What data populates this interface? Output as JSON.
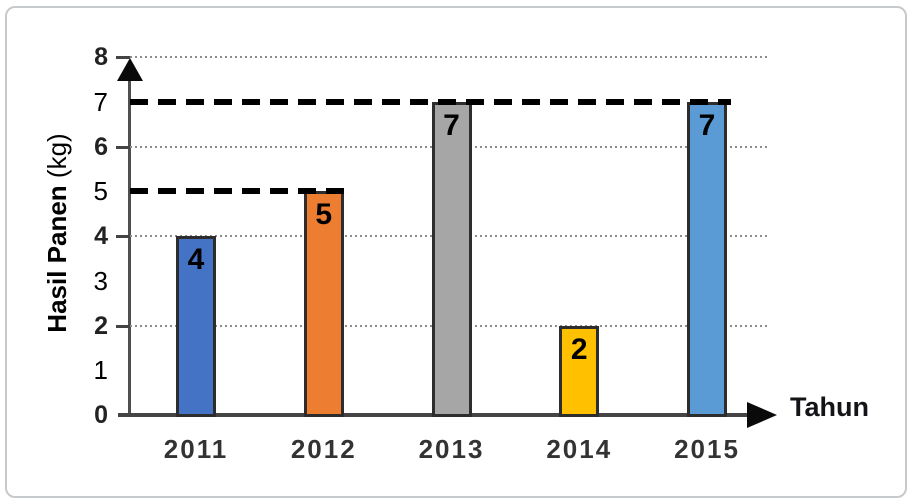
{
  "figure": {
    "background": "#ffffff",
    "frame_border_color": "#c6cacd"
  },
  "chart_data": {
    "type": "bar",
    "title": "",
    "xlabel": "Tahun",
    "ylabel": "Hasil Panen (kg)",
    "ylabel_main": "Hasil Panen",
    "ylabel_unit": " (kg)",
    "categories": [
      "2011",
      "2012",
      "2013",
      "2014",
      "2015"
    ],
    "values": [
      4,
      5,
      7,
      2,
      7
    ],
    "data_labels": [
      "4",
      "5",
      "7",
      "2",
      "7"
    ],
    "bar_colors": [
      "#4472C4",
      "#ED7D31",
      "#A6A6A6",
      "#FFC000",
      "#5B9BD5"
    ],
    "bar_border_color": "#2d2d2d",
    "ylim": [
      0,
      8
    ],
    "yticks": [
      0,
      1,
      2,
      3,
      4,
      5,
      6,
      7,
      8
    ],
    "bold_yticks": [
      0,
      2,
      4,
      6,
      8
    ],
    "gridlines_at": [
      2,
      4,
      6,
      8
    ],
    "grid_style": "dotted",
    "gridline_color": "#8c8c8c",
    "reference_lines": [
      {
        "value": 7,
        "ends_at_category": "2015",
        "style": "dashed",
        "color": "#000000"
      },
      {
        "value": 5,
        "ends_at_category": "2012",
        "style": "dashed",
        "color": "#000000"
      }
    ],
    "axis_color": "#4f4f4f",
    "legend": "none"
  }
}
